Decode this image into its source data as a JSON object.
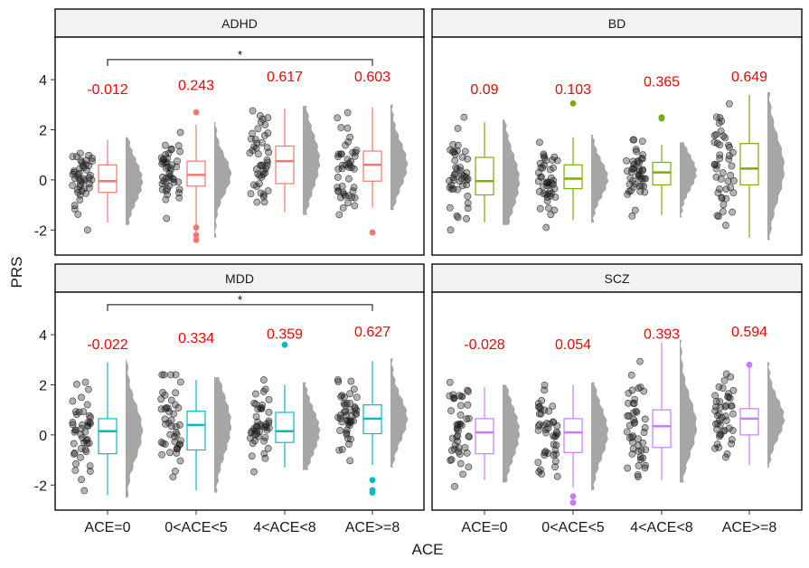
{
  "chart_data": {
    "type": "box",
    "ylabel": "PRS",
    "xlabel": "ACE",
    "categories": [
      "ACE=0",
      "0<ACE<5",
      "4<ACE<8",
      "ACE>=8"
    ],
    "yticks": [
      -2,
      0,
      2,
      4
    ],
    "ylim": [
      -3.0,
      5.7
    ],
    "panels": [
      {
        "name": "ADHD",
        "color": "#f8766d",
        "annotations": [
          "-0.012",
          "0.243",
          "0.617",
          "0.603"
        ],
        "annotation_y": [
          3.65,
          3.8,
          4.15,
          4.15
        ],
        "significance": {
          "from": "ACE=0",
          "to": "ACE>=8",
          "label": "*",
          "y": 4.8
        },
        "boxes": [
          {
            "min": -1.7,
            "q1": -0.5,
            "median": -0.05,
            "q3": 0.6,
            "max": 1.6,
            "outliers": []
          },
          {
            "min": -2.2,
            "q1": -0.25,
            "median": 0.2,
            "q3": 0.75,
            "max": 2.2,
            "outliers": [
              2.7,
              -1.9,
              -2.2,
              -2.4
            ]
          },
          {
            "min": -1.3,
            "q1": -0.15,
            "median": 0.75,
            "q3": 1.35,
            "max": 2.85,
            "outliers": []
          },
          {
            "min": -1.1,
            "q1": -0.05,
            "median": 0.6,
            "q3": 1.15,
            "max": 2.9,
            "outliers": [
              -2.1
            ]
          }
        ]
      },
      {
        "name": "BD",
        "color": "#7cae00",
        "annotations": [
          "0.09",
          "0.103",
          "0.365",
          "0.649"
        ],
        "annotation_y": [
          3.65,
          3.65,
          3.95,
          4.15
        ],
        "significance": null,
        "boxes": [
          {
            "min": -1.7,
            "q1": -0.6,
            "median": -0.05,
            "q3": 0.9,
            "max": 2.3,
            "outliers": []
          },
          {
            "min": -1.6,
            "q1": -0.35,
            "median": 0.05,
            "q3": 0.6,
            "max": 1.7,
            "outliers": [
              3.05
            ]
          },
          {
            "min": -1.4,
            "q1": -0.2,
            "median": 0.3,
            "q3": 0.7,
            "max": 1.4,
            "outliers": [
              2.5,
              2.45
            ]
          },
          {
            "min": -2.3,
            "q1": -0.2,
            "median": 0.45,
            "q3": 1.45,
            "max": 3.4,
            "outliers": []
          }
        ]
      },
      {
        "name": "MDD",
        "color": "#00bfc4",
        "annotations": [
          "-0.022",
          "0.334",
          "0.359",
          "0.627"
        ],
        "annotation_y": [
          3.65,
          3.9,
          4.05,
          4.15
        ],
        "significance": {
          "from": "ACE=0",
          "to": "ACE>=8",
          "label": "*",
          "y": 5.2
        },
        "boxes": [
          {
            "min": -2.4,
            "q1": -0.75,
            "median": 0.15,
            "q3": 0.65,
            "max": 2.9,
            "outliers": []
          },
          {
            "min": -2.2,
            "q1": -0.6,
            "median": 0.4,
            "q3": 0.95,
            "max": 2.2,
            "outliers": []
          },
          {
            "min": -1.3,
            "q1": -0.3,
            "median": 0.15,
            "q3": 0.9,
            "max": 2.0,
            "outliers": [
              3.6
            ]
          },
          {
            "min": -1.2,
            "q1": 0.05,
            "median": 0.65,
            "q3": 1.2,
            "max": 2.95,
            "outliers": [
              -1.8,
              -2.2,
              -2.3
            ]
          }
        ]
      },
      {
        "name": "SCZ",
        "color": "#c77cff",
        "annotations": [
          "-0.028",
          "0.054",
          "0.393",
          "0.594"
        ],
        "annotation_y": [
          3.65,
          3.65,
          4.05,
          4.15
        ],
        "significance": null,
        "boxes": [
          {
            "min": -1.8,
            "q1": -0.75,
            "median": 0.1,
            "q3": 0.65,
            "max": 1.9,
            "outliers": []
          },
          {
            "min": -2.1,
            "q1": -0.7,
            "median": 0.1,
            "q3": 0.65,
            "max": 2.0,
            "outliers": [
              -2.45,
              -2.7
            ]
          },
          {
            "min": -1.8,
            "q1": -0.5,
            "median": 0.35,
            "q3": 1.0,
            "max": 3.7,
            "outliers": []
          },
          {
            "min": -1.2,
            "q1": 0.0,
            "median": 0.65,
            "q3": 1.05,
            "max": 2.8,
            "outliers": [
              2.8
            ]
          }
        ]
      }
    ]
  }
}
